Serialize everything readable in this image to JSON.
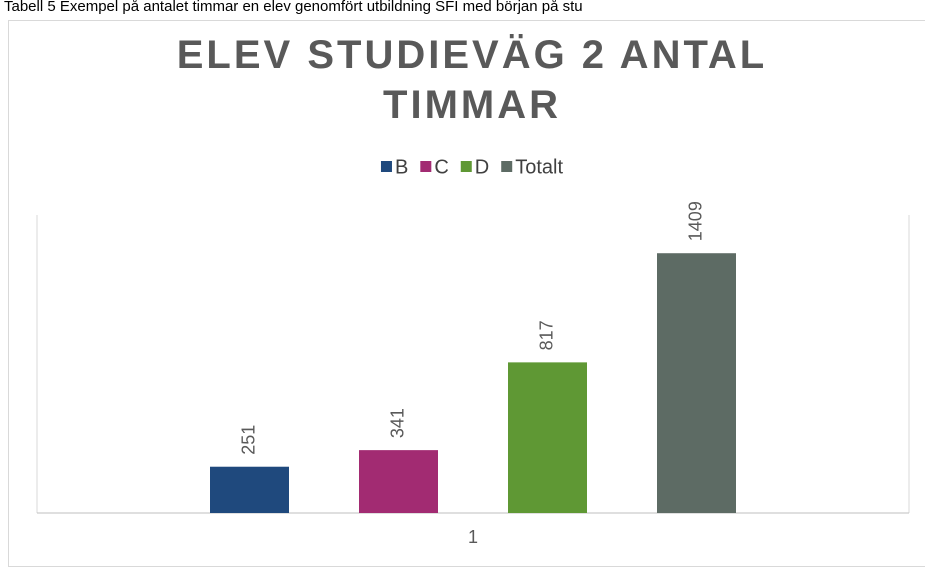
{
  "caption": "Tabell 5 Exempel på antalet timmar en elev genomfört utbildning SFI med början på stu",
  "chart_data": {
    "type": "bar",
    "title": "ELEV STUDIEVÄG 2 ANTAL TIMMAR",
    "categories": [
      "1"
    ],
    "series": [
      {
        "name": "B",
        "color": "#1f497d",
        "values": [
          251
        ]
      },
      {
        "name": "C",
        "color": "#a22b72",
        "values": [
          341
        ]
      },
      {
        "name": "D",
        "color": "#5f9834",
        "values": [
          817
        ]
      },
      {
        "name": "Totalt",
        "color": "#5d6b64",
        "values": [
          1409
        ]
      }
    ],
    "ylim": [
      0,
      1600
    ],
    "legend": "top"
  }
}
